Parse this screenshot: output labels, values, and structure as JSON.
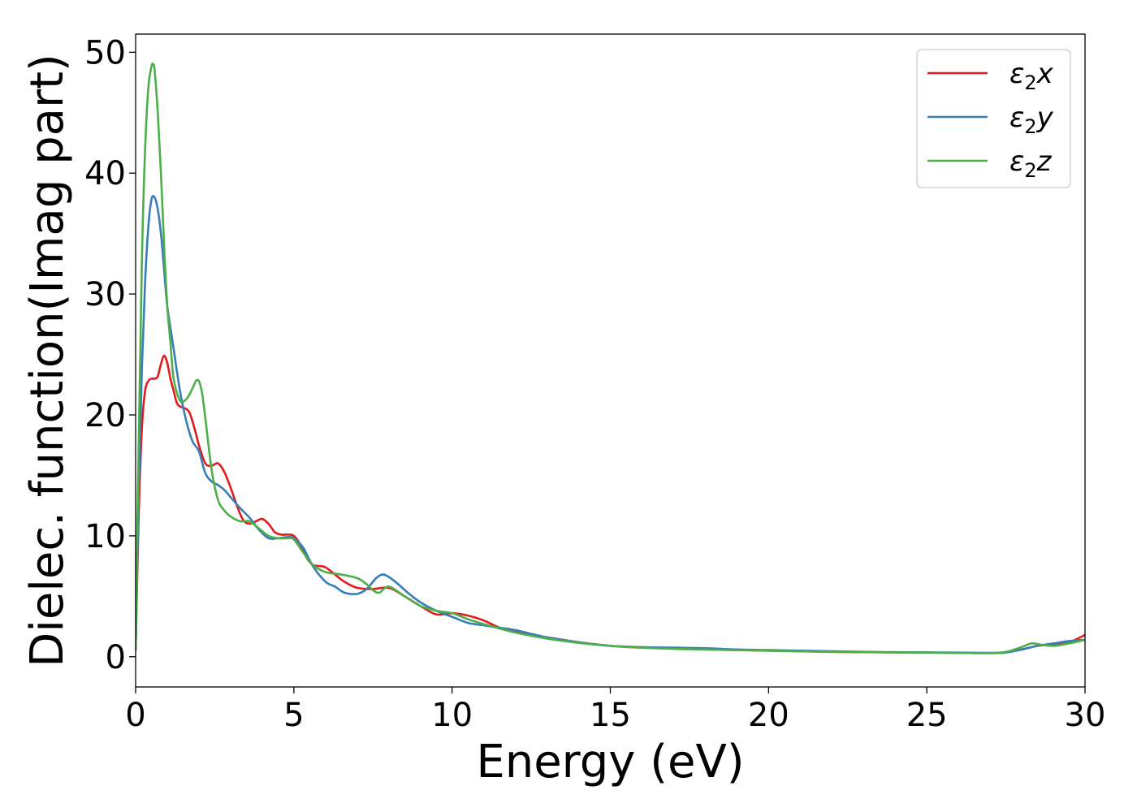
{
  "chart_data": {
    "type": "line",
    "title": "",
    "xlabel": "Energy (eV)",
    "ylabel": "Dielec. function(Imag part)",
    "xlim": [
      0,
      30
    ],
    "ylim": [
      -2.5,
      51.5
    ],
    "xticks": [
      0,
      5,
      10,
      15,
      20,
      25,
      30
    ],
    "yticks": [
      0,
      10,
      20,
      30,
      40,
      50
    ],
    "grid": false,
    "legend_position": "top-right",
    "series": [
      {
        "name": "ε2x",
        "legend_base": "ε",
        "legend_sub": "2",
        "legend_suffix": "x",
        "color": "#e41a1c",
        "x": [
          0,
          0.1,
          0.2,
          0.3,
          0.4,
          0.5,
          0.6,
          0.7,
          0.8,
          0.9,
          1.0,
          1.1,
          1.2,
          1.3,
          1.4,
          1.5,
          1.7,
          1.9,
          2.0,
          2.2,
          2.4,
          2.6,
          2.8,
          3.0,
          3.2,
          3.4,
          3.6,
          3.8,
          4.0,
          4.2,
          4.4,
          4.6,
          4.8,
          5.0,
          5.2,
          5.4,
          5.6,
          5.8,
          6.0,
          6.3,
          6.6,
          7.0,
          7.5,
          8.0,
          8.5,
          9.0,
          9.5,
          10.0,
          10.5,
          11.0,
          11.5,
          12.0,
          12.5,
          13.0,
          13.5,
          14.0,
          15.0,
          16.0,
          17.0,
          18.0,
          19.0,
          20.0,
          21.0,
          22.0,
          23.0,
          24.0,
          25.0,
          26.0,
          27.0,
          27.5,
          28.0,
          28.5,
          29.0,
          29.5,
          30.0
        ],
        "y": [
          0.5,
          12,
          19,
          22,
          22.8,
          23,
          23,
          23.2,
          24.2,
          24.9,
          24.3,
          23,
          22,
          21,
          20.7,
          20.6,
          20.2,
          18.5,
          17.5,
          16,
          15.8,
          16,
          15.3,
          14,
          12.5,
          11.3,
          11,
          11.2,
          11.4,
          11,
          10.3,
          10.1,
          10.1,
          10,
          9.3,
          8.2,
          7.6,
          7.5,
          7.4,
          6.8,
          6.2,
          5.7,
          5.6,
          5.7,
          5.0,
          4.2,
          3.5,
          3.6,
          3.4,
          3.0,
          2.4,
          2.1,
          1.8,
          1.6,
          1.4,
          1.2,
          0.9,
          0.75,
          0.7,
          0.6,
          0.55,
          0.5,
          0.45,
          0.4,
          0.38,
          0.36,
          0.34,
          0.32,
          0.3,
          0.35,
          0.6,
          0.9,
          1.0,
          1.2,
          1.8
        ]
      },
      {
        "name": "ε2y",
        "legend_base": "ε",
        "legend_sub": "2",
        "legend_suffix": "y",
        "color": "#377eb8",
        "x": [
          0,
          0.1,
          0.2,
          0.3,
          0.4,
          0.5,
          0.6,
          0.7,
          0.8,
          0.9,
          1.0,
          1.2,
          1.4,
          1.6,
          1.8,
          2.0,
          2.2,
          2.4,
          2.6,
          2.8,
          3.0,
          3.3,
          3.6,
          3.9,
          4.2,
          4.5,
          4.8,
          5.0,
          5.3,
          5.6,
          6.0,
          6.3,
          6.6,
          7.0,
          7.3,
          7.6,
          7.8,
          8.0,
          8.3,
          8.6,
          9.0,
          9.5,
          10.0,
          10.5,
          11.0,
          11.5,
          12.0,
          13.0,
          14.0,
          15.0,
          16.0,
          17.0,
          18.0,
          19.0,
          20.0,
          21.0,
          22.0,
          23.0,
          24.0,
          25.0,
          26.0,
          27.0,
          27.5,
          28.0,
          28.5,
          29.0,
          29.5,
          30.0
        ],
        "y": [
          0.5,
          14,
          24,
          31,
          35.5,
          37.8,
          38,
          37,
          35,
          32,
          29,
          25.5,
          22,
          19.5,
          17.8,
          17,
          15.2,
          14.5,
          14.2,
          13.8,
          13.2,
          12.3,
          11.5,
          10.5,
          9.8,
          9.8,
          9.9,
          9.8,
          9.0,
          7.5,
          6.2,
          5.8,
          5.3,
          5.2,
          5.6,
          6.5,
          6.8,
          6.6,
          6.0,
          5.3,
          4.5,
          3.8,
          3.3,
          2.8,
          2.6,
          2.4,
          2.2,
          1.6,
          1.2,
          0.9,
          0.8,
          0.75,
          0.7,
          0.6,
          0.55,
          0.5,
          0.45,
          0.4,
          0.38,
          0.36,
          0.34,
          0.32,
          0.35,
          0.6,
          0.9,
          1.1,
          1.3,
          1.4
        ]
      },
      {
        "name": "ε2z",
        "legend_base": "ε",
        "legend_sub": "2",
        "legend_suffix": "z",
        "color": "#4daf4a",
        "x": [
          0,
          0.1,
          0.2,
          0.3,
          0.4,
          0.5,
          0.55,
          0.6,
          0.7,
          0.8,
          0.9,
          1.0,
          1.1,
          1.2,
          1.4,
          1.6,
          1.8,
          1.9,
          2.0,
          2.1,
          2.2,
          2.4,
          2.6,
          2.8,
          3.0,
          3.3,
          3.6,
          3.9,
          4.2,
          4.5,
          4.8,
          5.0,
          5.3,
          5.6,
          6.0,
          6.5,
          7.0,
          7.3,
          7.5,
          7.7,
          8.0,
          8.5,
          9.0,
          9.5,
          10.0,
          10.5,
          11.0,
          12.0,
          13.0,
          14.0,
          15.0,
          16.0,
          17.0,
          18.0,
          19.0,
          20.0,
          21.0,
          22.0,
          23.0,
          24.0,
          25.0,
          26.0,
          27.0,
          27.5,
          28.0,
          28.3,
          28.6,
          29.0,
          29.5,
          30.0
        ],
        "y": [
          0.5,
          18,
          33,
          42,
          47,
          48.8,
          49,
          48.5,
          45,
          40,
          34,
          29,
          26,
          23,
          21.2,
          21.3,
          22.2,
          22.8,
          22.8,
          21.8,
          19.8,
          15.5,
          13,
          12.1,
          11.6,
          11.2,
          11.2,
          10.6,
          10.0,
          9.8,
          9.8,
          9.7,
          8.6,
          7.6,
          7.0,
          6.8,
          6.5,
          6.0,
          5.5,
          5.3,
          5.8,
          5.0,
          4.2,
          3.8,
          3.6,
          3.1,
          2.7,
          2.0,
          1.5,
          1.15,
          0.9,
          0.75,
          0.65,
          0.6,
          0.55,
          0.5,
          0.45,
          0.4,
          0.38,
          0.36,
          0.34,
          0.32,
          0.3,
          0.4,
          0.8,
          1.1,
          1.0,
          0.9,
          1.1,
          1.4
        ]
      }
    ]
  }
}
